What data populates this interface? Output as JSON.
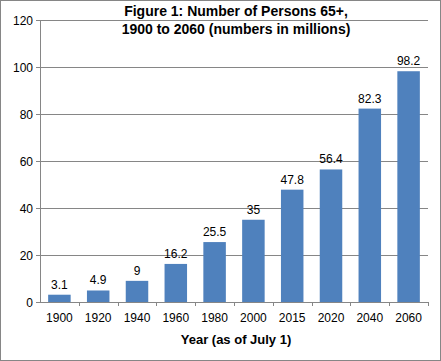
{
  "chart_data": {
    "type": "bar",
    "title": [
      "Figure 1:  Number of Persons 65+,",
      "1900 to 2060 (numbers in millions)"
    ],
    "x_label": "Year (as of July 1)",
    "categories": [
      "1900",
      "1920",
      "1940",
      "1960",
      "1980",
      "2000",
      "2015",
      "2020",
      "2040",
      "2060"
    ],
    "values": [
      3.1,
      4.9,
      9,
      16.2,
      25.5,
      35,
      47.8,
      56.4,
      82.3,
      98.2
    ],
    "color": "#4f81bd",
    "ylim": [
      0,
      120
    ],
    "yticks": [
      0,
      20,
      40,
      60,
      80,
      100,
      120
    ],
    "grid": true,
    "data_labels": true
  }
}
